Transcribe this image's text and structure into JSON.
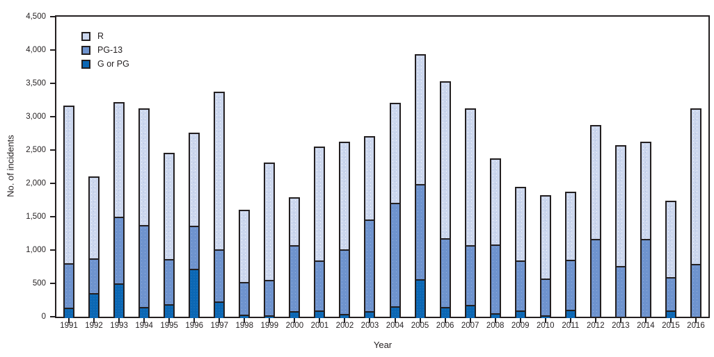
{
  "figure": {
    "ylabel": "No. of incidents",
    "xlabel": "Year",
    "legend": [
      {
        "label": "R",
        "color": "#ccd7ee"
      },
      {
        "label": "PG-13",
        "color": "#6e93ce"
      },
      {
        "label": "G or PG",
        "color": "#0b67b4"
      }
    ],
    "outline_color": "#231f20",
    "background_color": "#ffffff"
  },
  "chart_data": {
    "type": "bar",
    "stacked": true,
    "title": "",
    "xlabel": "Year",
    "ylabel": "No. of incidents",
    "ylim": [
      0,
      4500
    ],
    "ytick_step": 500,
    "ytick_labels": [
      "0",
      "500",
      "1,000",
      "1,500",
      "2,000",
      "2,500",
      "3,000",
      "3,500",
      "4,000",
      "4,500"
    ],
    "grid": false,
    "legend_position": "upper-left-inside",
    "categories": [
      "1991",
      "1992",
      "1993",
      "1994",
      "1995",
      "1996",
      "1997",
      "1998",
      "1999",
      "2000",
      "2001",
      "2002",
      "2003",
      "2004",
      "2005",
      "2006",
      "2007",
      "2008",
      "2009",
      "2010",
      "2011",
      "2012",
      "2013",
      "2014",
      "2015",
      "2016"
    ],
    "series": [
      {
        "name": "G or PG",
        "color": "#0b67b4",
        "values": [
          160,
          380,
          525,
          170,
          205,
          740,
          245,
          55,
          40,
          100,
          110,
          65,
          100,
          175,
          580,
          165,
          195,
          75,
          110,
          40,
          120,
          25,
          20,
          25,
          110,
          15
        ]
      },
      {
        "name": "PG-13",
        "color": "#6e93ce",
        "values": [
          665,
          520,
          1000,
          1225,
          680,
          645,
          785,
          485,
          530,
          985,
          745,
          970,
          1375,
          1550,
          1425,
          1030,
          895,
          1035,
          745,
          555,
          745,
          1165,
          760,
          1165,
          495,
          795
        ]
      },
      {
        "name": "R",
        "color": "#ccd7ee",
        "values": [
          2345,
          1205,
          1695,
          1725,
          1570,
          1380,
          2340,
          1065,
          1745,
          705,
          1700,
          1595,
          1235,
          1480,
          1930,
          2340,
          2030,
          1270,
          1090,
          1225,
          1010,
          1685,
          1790,
          1440,
          1135,
          2310
        ]
      }
    ],
    "stack_order_bottom_to_top": [
      "G or PG",
      "PG-13",
      "R"
    ]
  }
}
